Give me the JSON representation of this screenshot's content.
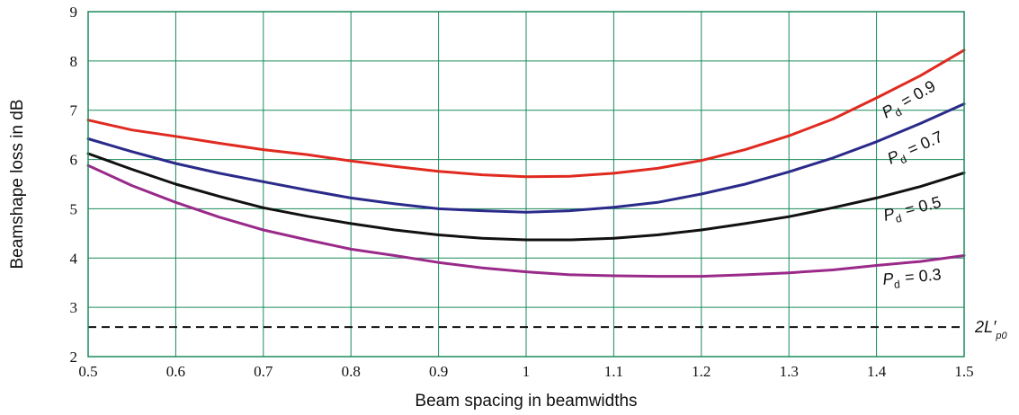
{
  "chart_data": {
    "type": "line",
    "xlabel": "Beam spacing in beamwidths",
    "ylabel": "Beamshape loss in dB",
    "xlim": [
      0.5,
      1.5
    ],
    "ylim": [
      2,
      9
    ],
    "xticks": [
      "0.5",
      "0.6",
      "0.7",
      "0.8",
      "0.9",
      "1",
      "1.1",
      "1.2",
      "1.3",
      "1.4",
      "1.5"
    ],
    "yticks": [
      "2",
      "3",
      "4",
      "5",
      "6",
      "7",
      "8",
      "9"
    ],
    "grid": true,
    "grid_color": "#1a8a5a",
    "x": [
      0.5,
      0.55,
      0.6,
      0.65,
      0.7,
      0.75,
      0.8,
      0.85,
      0.9,
      0.95,
      1.0,
      1.05,
      1.1,
      1.15,
      1.2,
      1.25,
      1.3,
      1.35,
      1.4,
      1.45,
      1.5
    ],
    "series": [
      {
        "label_main": "P",
        "label_sub": "d",
        "label_value": "= 0.9",
        "color": "#e02a20",
        "values": [
          6.8,
          6.6,
          6.47,
          6.33,
          6.2,
          6.1,
          5.97,
          5.86,
          5.76,
          5.69,
          5.65,
          5.66,
          5.72,
          5.82,
          5.98,
          6.2,
          6.48,
          6.82,
          7.25,
          7.7,
          8.22
        ]
      },
      {
        "label_main": "P",
        "label_sub": "d",
        "label_value": "= 0.7",
        "color": "#2a2a8a",
        "values": [
          6.42,
          6.16,
          5.92,
          5.72,
          5.55,
          5.38,
          5.22,
          5.1,
          5.0,
          4.96,
          4.93,
          4.96,
          5.03,
          5.13,
          5.3,
          5.5,
          5.75,
          6.03,
          6.36,
          6.73,
          7.13
        ]
      },
      {
        "label_main": "P",
        "label_sub": "d",
        "label_value": "= 0.5",
        "color": "#111111",
        "values": [
          6.12,
          5.8,
          5.5,
          5.25,
          5.02,
          4.85,
          4.7,
          4.57,
          4.47,
          4.4,
          4.37,
          4.37,
          4.4,
          4.47,
          4.57,
          4.7,
          4.84,
          5.02,
          5.22,
          5.45,
          5.73
        ]
      },
      {
        "label_main": "P",
        "label_sub": "d",
        "label_value": "= 0.3",
        "color": "#9a2a8a",
        "values": [
          5.88,
          5.47,
          5.13,
          4.83,
          4.57,
          4.37,
          4.18,
          4.05,
          3.91,
          3.8,
          3.72,
          3.66,
          3.64,
          3.63,
          3.63,
          3.66,
          3.7,
          3.76,
          3.85,
          3.93,
          4.05
        ]
      }
    ],
    "reference_line": {
      "value": 2.6,
      "style": "dashed",
      "label_main": "2L′",
      "label_sub": "p0"
    }
  }
}
